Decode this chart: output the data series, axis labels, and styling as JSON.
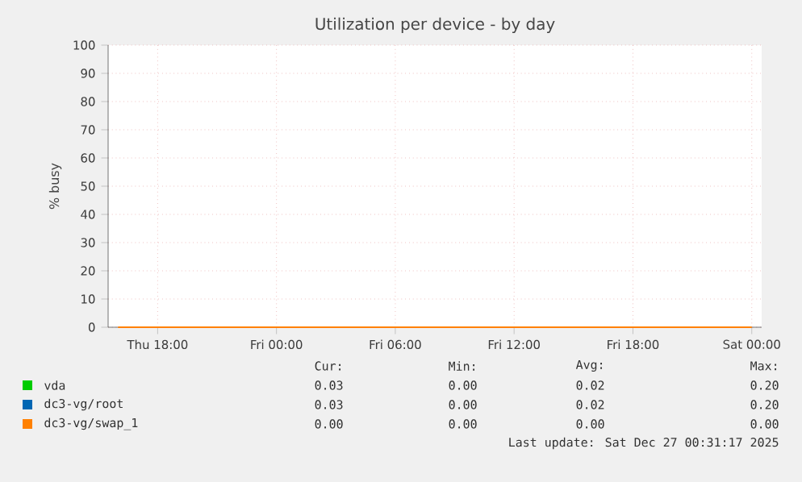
{
  "chart_data": {
    "type": "line",
    "title": "Utilization per device - by day",
    "ylabel": "% busy",
    "xlim": [
      "2025-12-25T15:30",
      "2025-12-27T00:30"
    ],
    "ylim": [
      0,
      100
    ],
    "xticks": [
      {
        "value": "2025-12-25T18:00",
        "label": "Thu 18:00"
      },
      {
        "value": "2025-12-26T00:00",
        "label": "Fri 00:00"
      },
      {
        "value": "2025-12-26T06:00",
        "label": "Fri 06:00"
      },
      {
        "value": "2025-12-26T12:00",
        "label": "Fri 12:00"
      },
      {
        "value": "2025-12-26T18:00",
        "label": "Fri 18:00"
      },
      {
        "value": "2025-12-27T00:00",
        "label": "Sat 00:00"
      }
    ],
    "yticks": [
      0,
      10,
      20,
      30,
      40,
      50,
      60,
      70,
      80,
      90,
      100
    ],
    "grid": true,
    "legend": "bottom",
    "marker": "none",
    "line_style": "solid",
    "series": [
      {
        "name": "vda",
        "color": "#00cc00",
        "values": [
          null
        ]
      },
      {
        "name": "dc3-vg/root",
        "color": "#0066b3",
        "values": [
          null
        ]
      },
      {
        "name": "dc3-vg/swap_1",
        "color": "#ff8000",
        "x": [
          "2025-12-25T16:00",
          "2025-12-26T00:00",
          "2025-12-26T12:00",
          "2025-12-27T00:00"
        ],
        "values": [
          0,
          0,
          0,
          0
        ]
      }
    ],
    "annotations": [
      "Cur:",
      "Min:",
      "Avg:",
      "Max:",
      "0.03",
      "0.00",
      "0.02",
      "0.20",
      "0.03",
      "0.00",
      "0.02",
      "0.20",
      "0.00",
      "0.00",
      "0.00",
      "0.00",
      "Last update: Sat Dec 27 00:31:17 2025"
    ]
  }
}
